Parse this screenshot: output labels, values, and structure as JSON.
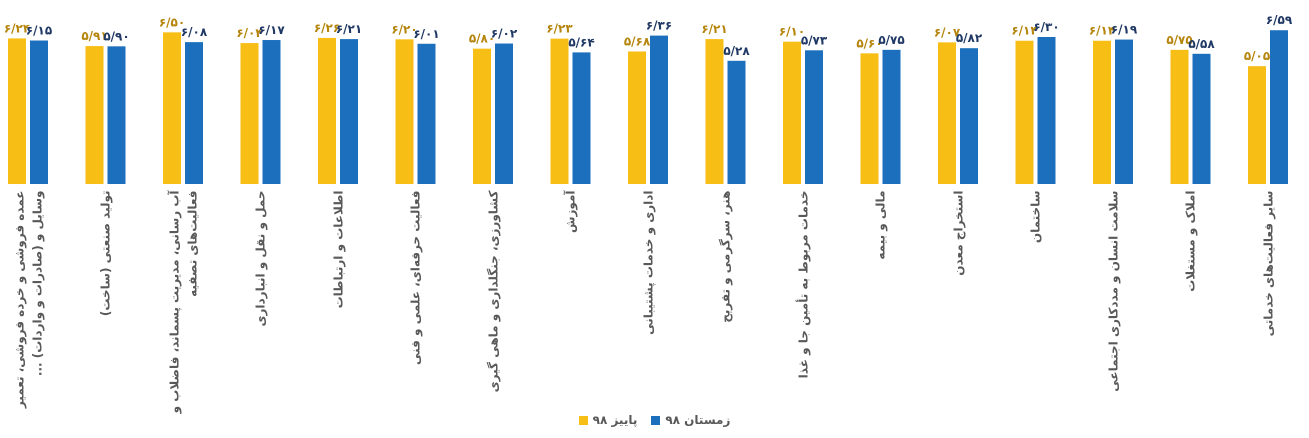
{
  "chart_data": {
    "type": "bar",
    "categories": [
      "عمده فروشی و خرده فروشی، تعمیر وسایل و (صادرات و واردات) ...",
      "تولید صنعتی (ساخت)",
      "آب رسانی، مدیریت پسماند، فاضلاب و فعالیت‌های تصفیه",
      "حمل و نقل و انبارداری",
      "اطلاعات و ارتباطات",
      "فعالیت حرفه‌ای، علمی و فنی",
      "کشاورزی، جنگلداری و ماهی گیری",
      "آموزش",
      "اداری و خدمات پشتیبانی",
      "هنر، سرگرمی و تفریح",
      "خدمات مربوط به تأمین جا و غذا",
      "مالی و بیمه",
      "استخراج معدن",
      "ساختمان",
      "سلامت انسان و مددکاری اجتماعی",
      "املاک و مستغلات",
      "سایر فعالیت‌های خدماتی"
    ],
    "series": [
      {
        "name": "پاییز ۹۸",
        "color": "#f7be16",
        "values": [
          6.24,
          5.91,
          6.5,
          6.04,
          6.26,
          6.2,
          5.8,
          6.23,
          5.68,
          6.21,
          6.1,
          5.6,
          6.07,
          6.14,
          6.14,
          5.75,
          5.05
        ],
        "value_labels": [
          "۶/۲۴",
          "۵/۹۱",
          "۶/۵۰",
          "۶/۰۴",
          "۶/۲۶",
          "۶/۲۰",
          "۵/۸۰",
          "۶/۲۳",
          "۵/۶۸",
          "۶/۲۱",
          "۶/۱۰",
          "۵/۶۰",
          "۶/۰۷",
          "۶/۱۴",
          "۶/۱۴",
          "۵/۷۵",
          "۵/۰۵"
        ]
      },
      {
        "name": "زمستان ۹۸",
        "color": "#1b6fbd",
        "values": [
          6.15,
          5.9,
          6.08,
          6.17,
          6.21,
          6.01,
          6.02,
          5.64,
          6.36,
          5.28,
          5.73,
          5.75,
          5.82,
          6.3,
          6.19,
          5.58,
          6.59
        ],
        "value_labels": [
          "۶/۱۵",
          "۵/۹۰",
          "۶/۰۸",
          "۶/۱۷",
          "۶/۲۱",
          "۶/۰۱",
          "۶/۰۲",
          "۵/۶۴",
          "۶/۳۶",
          "۵/۲۸",
          "۵/۷۳",
          "۵/۷۵",
          "۵/۸۲",
          "۶/۳۰",
          "۶/۱۹",
          "۵/۵۸",
          "۶/۵۹"
        ]
      }
    ],
    "ylim": [
      0,
      7.8
    ],
    "legend": "bottom"
  }
}
